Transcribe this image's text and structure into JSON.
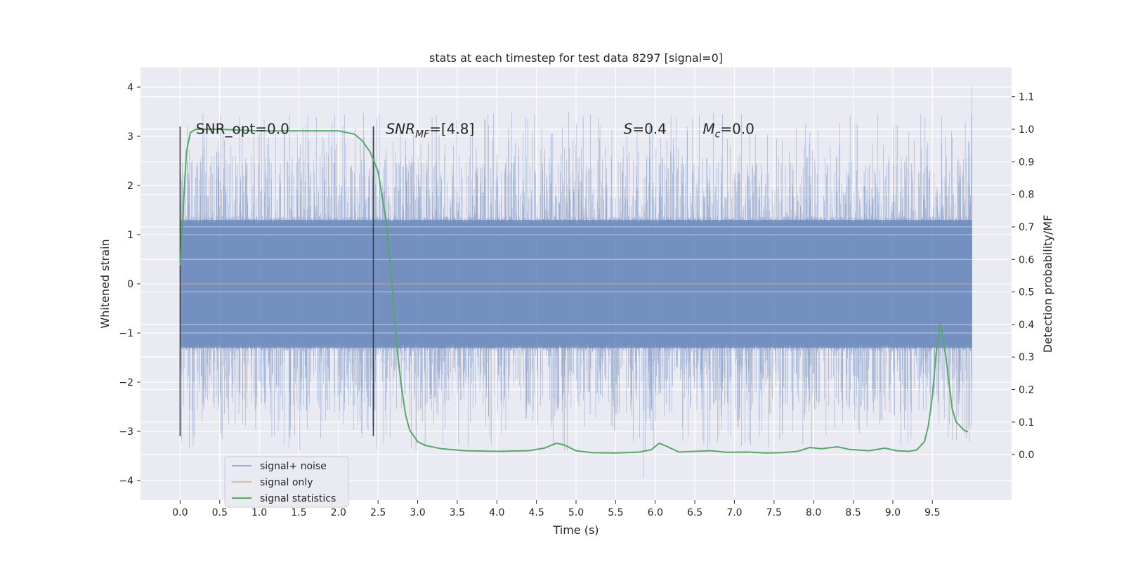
{
  "chart_data": {
    "type": "line",
    "title": "stats at each timestep for test data 8297 [signal=0]",
    "xlabel": "Time (s)",
    "ylabel_left": "Whitened strain",
    "ylabel_right": "Detection probability/MF",
    "xlim": [
      -0.5,
      10.5
    ],
    "ylim_left": [
      -4.4,
      4.4
    ],
    "ylim_right": [
      -0.14,
      1.19
    ],
    "x_ticks": [
      0.0,
      0.5,
      1.0,
      1.5,
      2.0,
      2.5,
      3.0,
      3.5,
      4.0,
      4.5,
      5.0,
      5.5,
      6.0,
      6.5,
      7.0,
      7.5,
      8.0,
      8.5,
      9.0,
      9.5
    ],
    "x_tick_labels": [
      "0.0",
      "0.5",
      "1.0",
      "1.5",
      "2.0",
      "2.5",
      "3.0",
      "3.5",
      "4.0",
      "4.5",
      "5.0",
      "5.5",
      "6.0",
      "6.5",
      "7.0",
      "7.5",
      "8.0",
      "8.5",
      "9.0",
      "9.5"
    ],
    "y_left_ticks": [
      -4,
      -3,
      -2,
      -1,
      0,
      1,
      2,
      3,
      4
    ],
    "y_left_tick_labels": [
      "−4",
      "−3",
      "−2",
      "−1",
      "0",
      "1",
      "2",
      "3",
      "4"
    ],
    "y_right_ticks": [
      0.0,
      0.1,
      0.2,
      0.3,
      0.4,
      0.5,
      0.6,
      0.7,
      0.8,
      0.9,
      1.0,
      1.1
    ],
    "y_right_tick_labels": [
      "0.0",
      "0.1",
      "0.2",
      "0.3",
      "0.4",
      "0.5",
      "0.6",
      "0.7",
      "0.8",
      "0.9",
      "1.0",
      "1.1"
    ],
    "grid": true,
    "legend_placement": "lower-left",
    "series": [
      {
        "name": "signal+ noise",
        "color": "#4c72b0",
        "axis": "left",
        "x_range": [
          0.0,
          10.0
        ],
        "typical_abs_max": 1.3,
        "envelope_max": 4.05,
        "envelope_min": -3.95
      },
      {
        "name": "signal only",
        "color": "#dd8452",
        "axis": "left",
        "x": [
          0.0,
          10.0
        ],
        "y": [
          0.0,
          0.0
        ]
      },
      {
        "name": "signal statistics",
        "color": "#55a868",
        "axis": "right",
        "x": [
          0.0,
          0.05,
          0.08,
          0.13,
          0.2,
          0.3,
          0.5,
          1.0,
          1.5,
          2.0,
          2.2,
          2.3,
          2.4,
          2.5,
          2.6,
          2.65,
          2.7,
          2.75,
          2.8,
          2.85,
          2.9,
          3.0,
          3.1,
          3.3,
          3.6,
          4.0,
          4.4,
          4.6,
          4.75,
          4.85,
          5.0,
          5.2,
          5.5,
          5.8,
          5.95,
          6.05,
          6.15,
          6.3,
          6.5,
          6.7,
          6.9,
          7.15,
          7.4,
          7.6,
          7.8,
          7.95,
          8.1,
          8.3,
          8.45,
          8.7,
          8.9,
          9.05,
          9.2,
          9.3,
          9.4,
          9.45,
          9.5,
          9.55,
          9.6,
          9.65,
          9.7,
          9.75,
          9.8,
          9.9,
          9.95
        ],
        "y": [
          0.58,
          0.8,
          0.93,
          0.99,
          1.0,
          1.0,
          1.0,
          0.995,
          0.995,
          0.995,
          0.985,
          0.965,
          0.93,
          0.87,
          0.72,
          0.6,
          0.45,
          0.3,
          0.2,
          0.12,
          0.075,
          0.04,
          0.028,
          0.018,
          0.012,
          0.01,
          0.012,
          0.02,
          0.035,
          0.03,
          0.012,
          0.006,
          0.005,
          0.008,
          0.015,
          0.035,
          0.025,
          0.008,
          0.01,
          0.012,
          0.007,
          0.008,
          0.005,
          0.006,
          0.01,
          0.022,
          0.018,
          0.024,
          0.016,
          0.012,
          0.02,
          0.012,
          0.01,
          0.014,
          0.04,
          0.09,
          0.18,
          0.32,
          0.4,
          0.34,
          0.24,
          0.14,
          0.1,
          0.075,
          0.07
        ]
      }
    ],
    "vertical_lines": [
      {
        "x": 0.0,
        "y_from": -3.1,
        "y_to": 3.2,
        "color": "#3a3a3a"
      },
      {
        "x": 2.44,
        "y_from": -3.1,
        "y_to": 3.2,
        "color": "#3a3a3a"
      }
    ],
    "annotations": [
      {
        "name": "snr-opt",
        "x": 0.2,
        "y": 3.15,
        "text": "SNR_opt=0.0"
      },
      {
        "name": "snr-mf",
        "x": 2.6,
        "y": 3.15,
        "base": "SNR",
        "sub": "MF",
        "rest": "=[4.8]"
      },
      {
        "name": "s-value",
        "x": 5.6,
        "y": 3.15,
        "base": "S",
        "sub": "",
        "rest": "=0.4"
      },
      {
        "name": "mc-value",
        "x": 6.6,
        "y": 3.15,
        "base": "M",
        "sub": "c",
        "rest": "=0.0"
      }
    ]
  }
}
